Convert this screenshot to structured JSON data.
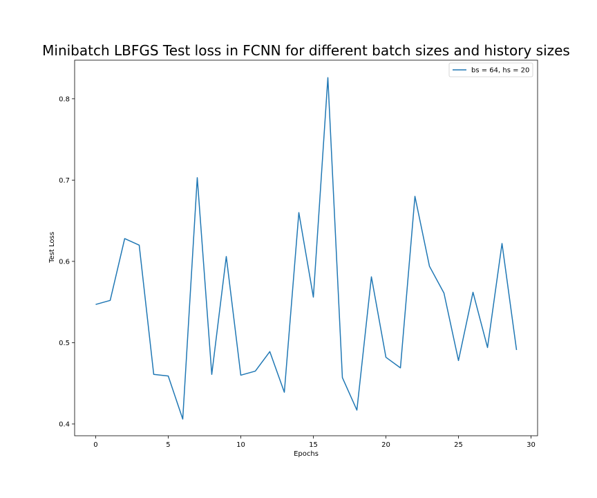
{
  "chart_data": {
    "type": "line",
    "title": "Minibatch LBFGS Test loss in FCNN for different batch sizes and history sizes",
    "xlabel": "Epochs",
    "ylabel": "Test Loss",
    "xlim": [
      -1.45,
      30.45
    ],
    "ylim": [
      0.3855,
      0.8475
    ],
    "xticks": [
      0,
      5,
      10,
      15,
      20,
      25,
      30
    ],
    "xtick_labels": [
      "0",
      "5",
      "10",
      "15",
      "20",
      "25",
      "30"
    ],
    "yticks": [
      0.4,
      0.5,
      0.6,
      0.7,
      0.8
    ],
    "ytick_labels": [
      "0.4",
      "0.5",
      "0.6",
      "0.7",
      "0.8"
    ],
    "grid": false,
    "legend_position": "top-right",
    "series": [
      {
        "name": "bs = 64, hs = 20",
        "color": "#1f77b4",
        "x": [
          0,
          1,
          2,
          3,
          4,
          5,
          6,
          7,
          8,
          9,
          10,
          11,
          12,
          13,
          14,
          15,
          16,
          17,
          18,
          19,
          20,
          21,
          22,
          23,
          24,
          25,
          26,
          27,
          28,
          29
        ],
        "y": [
          0.547,
          0.552,
          0.628,
          0.62,
          0.461,
          0.459,
          0.406,
          0.703,
          0.461,
          0.606,
          0.46,
          0.465,
          0.489,
          0.439,
          0.66,
          0.556,
          0.826,
          0.457,
          0.417,
          0.581,
          0.482,
          0.469,
          0.68,
          0.594,
          0.561,
          0.478,
          0.562,
          0.494,
          0.622,
          0.491
        ]
      }
    ]
  }
}
